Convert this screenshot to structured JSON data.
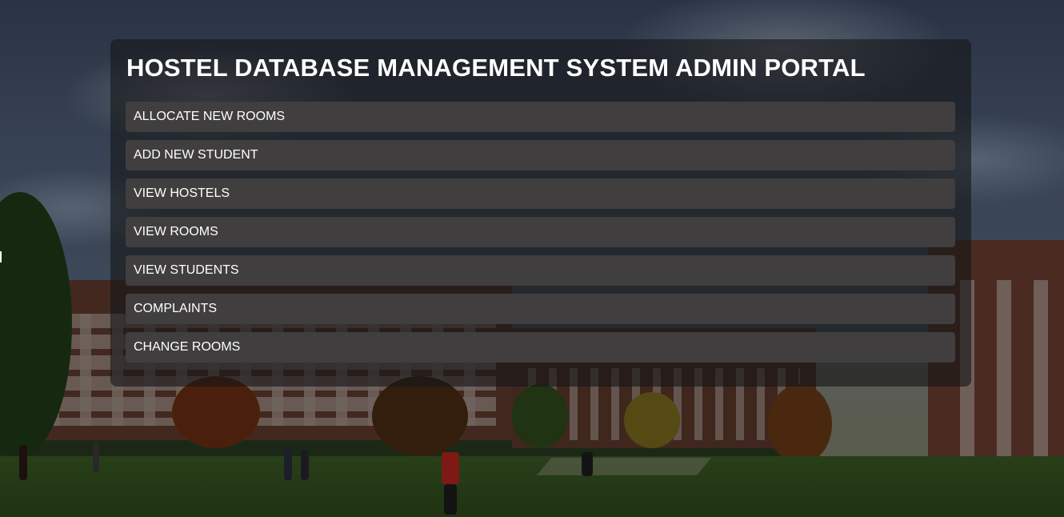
{
  "portal": {
    "title": "HOSTEL DATABASE MANAGEMENT SYSTEM ADMIN PORTAL"
  },
  "menu": {
    "items": [
      {
        "label": "ALLOCATE NEW ROOMS"
      },
      {
        "label": "ADD NEW STUDENT"
      },
      {
        "label": "VIEW HOSTELS"
      },
      {
        "label": "VIEW ROOMS"
      },
      {
        "label": "VIEW STUDENTS"
      },
      {
        "label": "COMPLAINTS"
      },
      {
        "label": "CHANGE ROOMS"
      }
    ]
  },
  "colors": {
    "panel_background": "#161618",
    "menu_item_background": "#403e3e",
    "text": "#ffffff"
  }
}
